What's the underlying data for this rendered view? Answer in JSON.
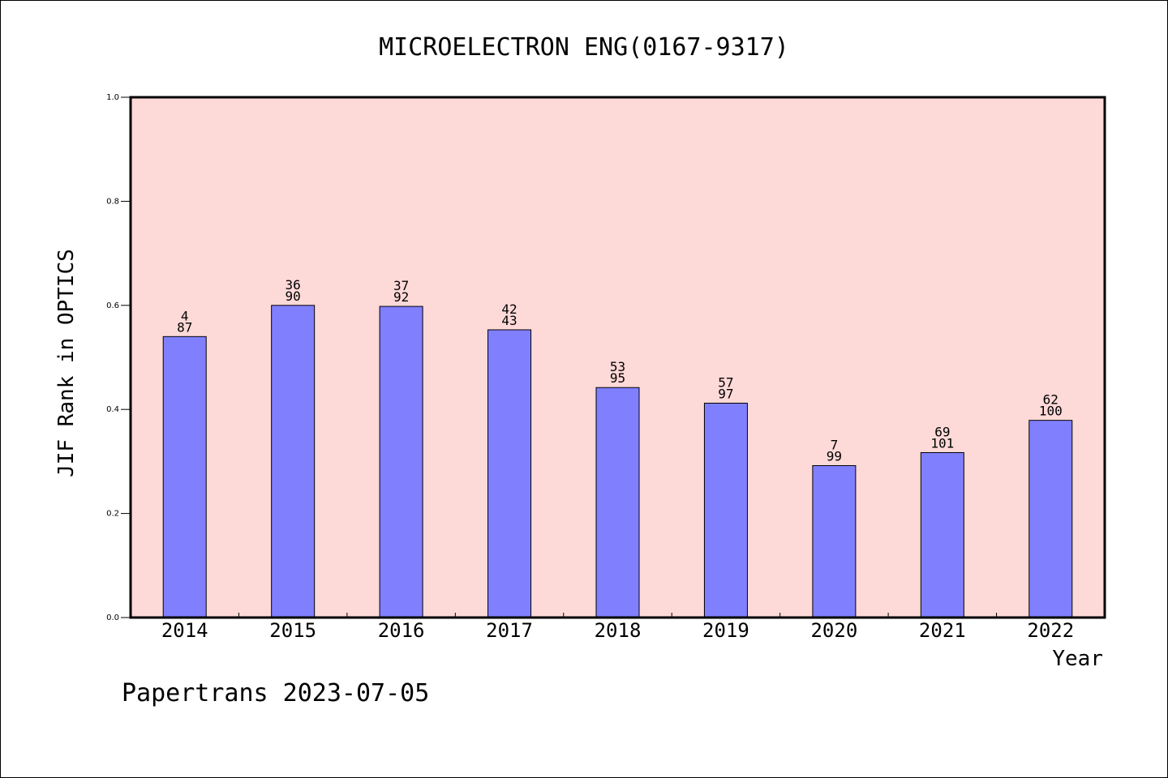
{
  "chart_data": {
    "type": "bar",
    "title": "MICROELECTRON ENG(0167-9317)",
    "xlabel": "Year",
    "ylabel": "JIF Rank in OPTICS",
    "ylim": [
      0,
      1.0
    ],
    "yticks": [
      "0.0",
      "0.2",
      "0.4",
      "0.6",
      "0.8",
      "1.0"
    ],
    "categories": [
      "2014",
      "2015",
      "2016",
      "2017",
      "2018",
      "2019",
      "2020",
      "2021",
      "2022"
    ],
    "values": [
      0.54,
      0.6,
      0.598,
      0.553,
      0.442,
      0.412,
      0.292,
      0.317,
      0.379
    ],
    "labels_top": [
      "4",
      "36",
      "37",
      "42",
      "53",
      "57",
      "7",
      "69",
      "62"
    ],
    "labels_bottom": [
      "87",
      "90",
      "92",
      "43",
      "95",
      "97",
      "99",
      "101",
      "100"
    ],
    "grid": false,
    "colors": {
      "plot_bg": "#fdd9d7",
      "bar_fill": "#8080ff",
      "bar_stroke": "#000000"
    }
  },
  "footer": "Papertrans 2023-07-05"
}
